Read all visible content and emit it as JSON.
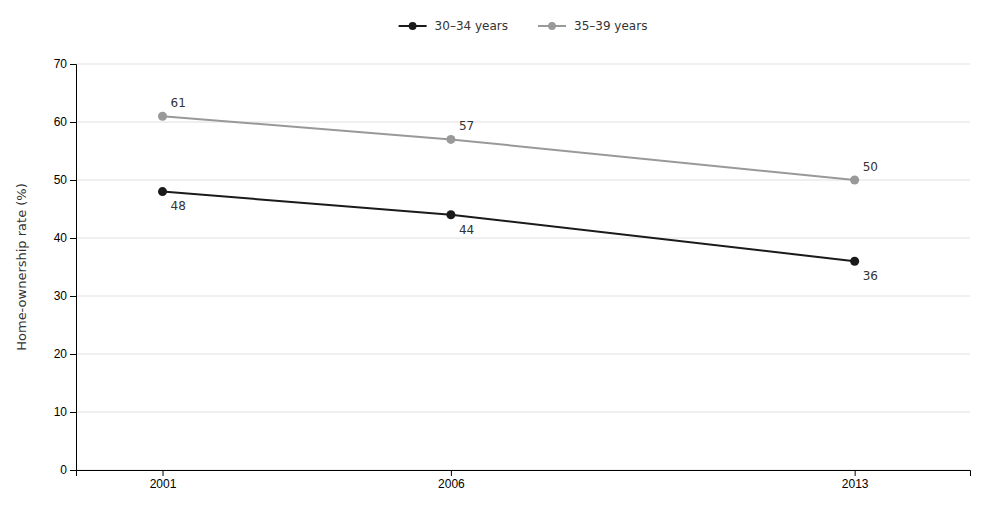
{
  "chart_data": {
    "type": "line",
    "x": [
      2001,
      2006,
      2013
    ],
    "series": [
      {
        "name": "30–34 years",
        "color": "#1a1a1a",
        "marker": "circle",
        "values": [
          48,
          44,
          36
        ]
      },
      {
        "name": "35–39 years",
        "color": "#999999",
        "marker": "circle",
        "values": [
          61,
          57,
          50
        ]
      }
    ],
    "ylabel": "Home-ownership rate (%)",
    "xlim": [
      1999.5,
      2015.0
    ],
    "xticks": [
      2001,
      2006,
      2013
    ],
    "ylim": [
      0,
      70
    ],
    "yticks": [
      0,
      10,
      20,
      30,
      40,
      50,
      60,
      70
    ],
    "grid": true,
    "data_labels": true,
    "legend": "top"
  }
}
